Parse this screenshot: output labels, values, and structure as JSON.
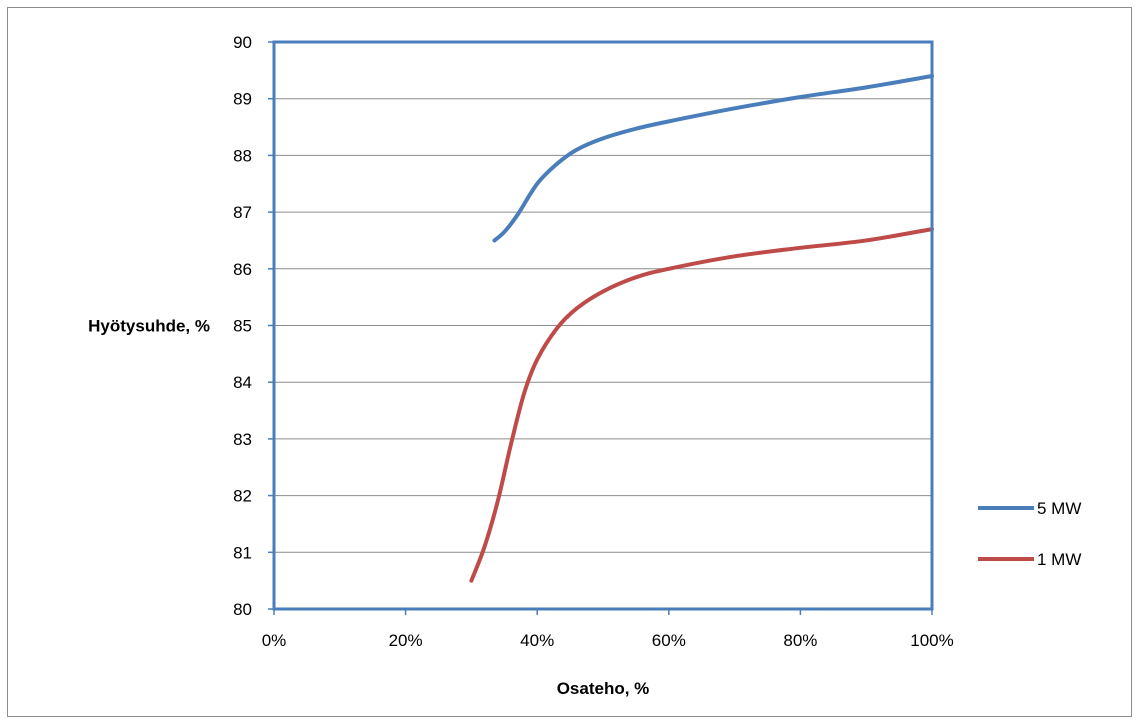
{
  "chart_data": {
    "type": "line",
    "title": "",
    "xlabel": "Osateho, %",
    "ylabel": "Hyötysuhde, %",
    "xlim": [
      0,
      100
    ],
    "ylim": [
      80,
      90
    ],
    "x_ticks": [
      0,
      20,
      40,
      60,
      80,
      100
    ],
    "x_tick_labels": [
      "0%",
      "20%",
      "40%",
      "60%",
      "80%",
      "100%"
    ],
    "y_ticks": [
      80,
      81,
      82,
      83,
      84,
      85,
      86,
      87,
      88,
      89,
      90
    ],
    "y_tick_labels": [
      "80",
      "81",
      "82",
      "83",
      "84",
      "85",
      "86",
      "87",
      "88",
      "89",
      "90"
    ],
    "grid": "horizontal",
    "legend_position": "right",
    "series": [
      {
        "name": "5 MW",
        "color": "#4a7ebb",
        "x": [
          33.5,
          35,
          37,
          40,
          43,
          46,
          50,
          55,
          60,
          70,
          80,
          90,
          100
        ],
        "y": [
          86.5,
          86.65,
          86.95,
          87.5,
          87.85,
          88.1,
          88.3,
          88.47,
          88.6,
          88.83,
          89.03,
          89.2,
          89.4
        ]
      },
      {
        "name": "1 MW",
        "color": "#be4b48",
        "x": [
          30,
          32,
          34,
          36,
          38,
          40,
          43,
          46,
          50,
          55,
          60,
          70,
          80,
          90,
          100
        ],
        "y": [
          80.5,
          81.1,
          81.9,
          82.9,
          83.8,
          84.4,
          84.95,
          85.3,
          85.6,
          85.85,
          86.0,
          86.22,
          86.37,
          86.5,
          86.7
        ]
      }
    ]
  }
}
